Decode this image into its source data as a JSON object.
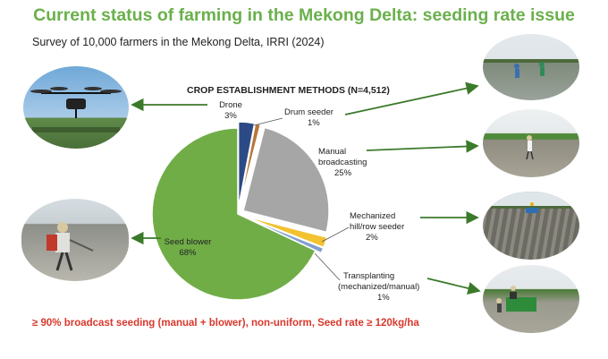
{
  "slide": {
    "title": "Current status of farming in the Mekong Delta: seeding rate issue",
    "subtitle": "Survey of 10,000 farmers in the Mekong Delta, IRRI (2024)",
    "footnote": "≥ 90% broadcast seeding (manual + blower), non-uniform,  Seed rate ≥ 120kg/ha"
  },
  "chart_data": {
    "type": "pie",
    "title": "CROP ESTABLISHMENT METHODS (N=4,512)",
    "slices": [
      {
        "label": "Drone",
        "value": 3,
        "value_label": "3%",
        "color": "#2c4a86"
      },
      {
        "label": "Drum seeder",
        "value": 1,
        "value_label": "1%",
        "color": "#b8763a"
      },
      {
        "label": "Manual broadcasting",
        "value": 25,
        "value_label": "25%",
        "color": "#a6a6a6"
      },
      {
        "label": "Mechanized hill/row seeder",
        "value": 2,
        "value_label": "2%",
        "color": "#f2c230"
      },
      {
        "label": "Transplanting (mechanized/manual)",
        "value": 1,
        "value_label": "1%",
        "color": "#7f9fcf"
      },
      {
        "label": "Seed blower",
        "value": 68,
        "value_label": "68%",
        "color": "#70ad47"
      }
    ],
    "label_lines": {
      "Drone": [
        "Drone",
        "3%"
      ],
      "Drum seeder": [
        "Drum seeder",
        "1%"
      ],
      "Manual broadcasting": [
        "Manual",
        "broadcasting",
        "25%"
      ],
      "Mechanized hill/row seeder": [
        "Mechanized",
        "hill/row seeder",
        "2%"
      ],
      "Transplanting (mechanized/manual)": [
        "Transplanting",
        "(mechanized/manual)",
        "1%"
      ],
      "Seed blower": [
        "Seed blower",
        "68%"
      ]
    }
  },
  "photos": [
    {
      "name": "drone-photo"
    },
    {
      "name": "blower-farmer-photo"
    },
    {
      "name": "drum-seeder-field-photo"
    },
    {
      "name": "manual-broadcasting-field-photo"
    },
    {
      "name": "row-seeder-field-photo"
    },
    {
      "name": "transplanter-photo"
    }
  ],
  "colors": {
    "title": "#6ab04c",
    "footnote": "#d9382c",
    "arrow": "#3b7a2a"
  }
}
